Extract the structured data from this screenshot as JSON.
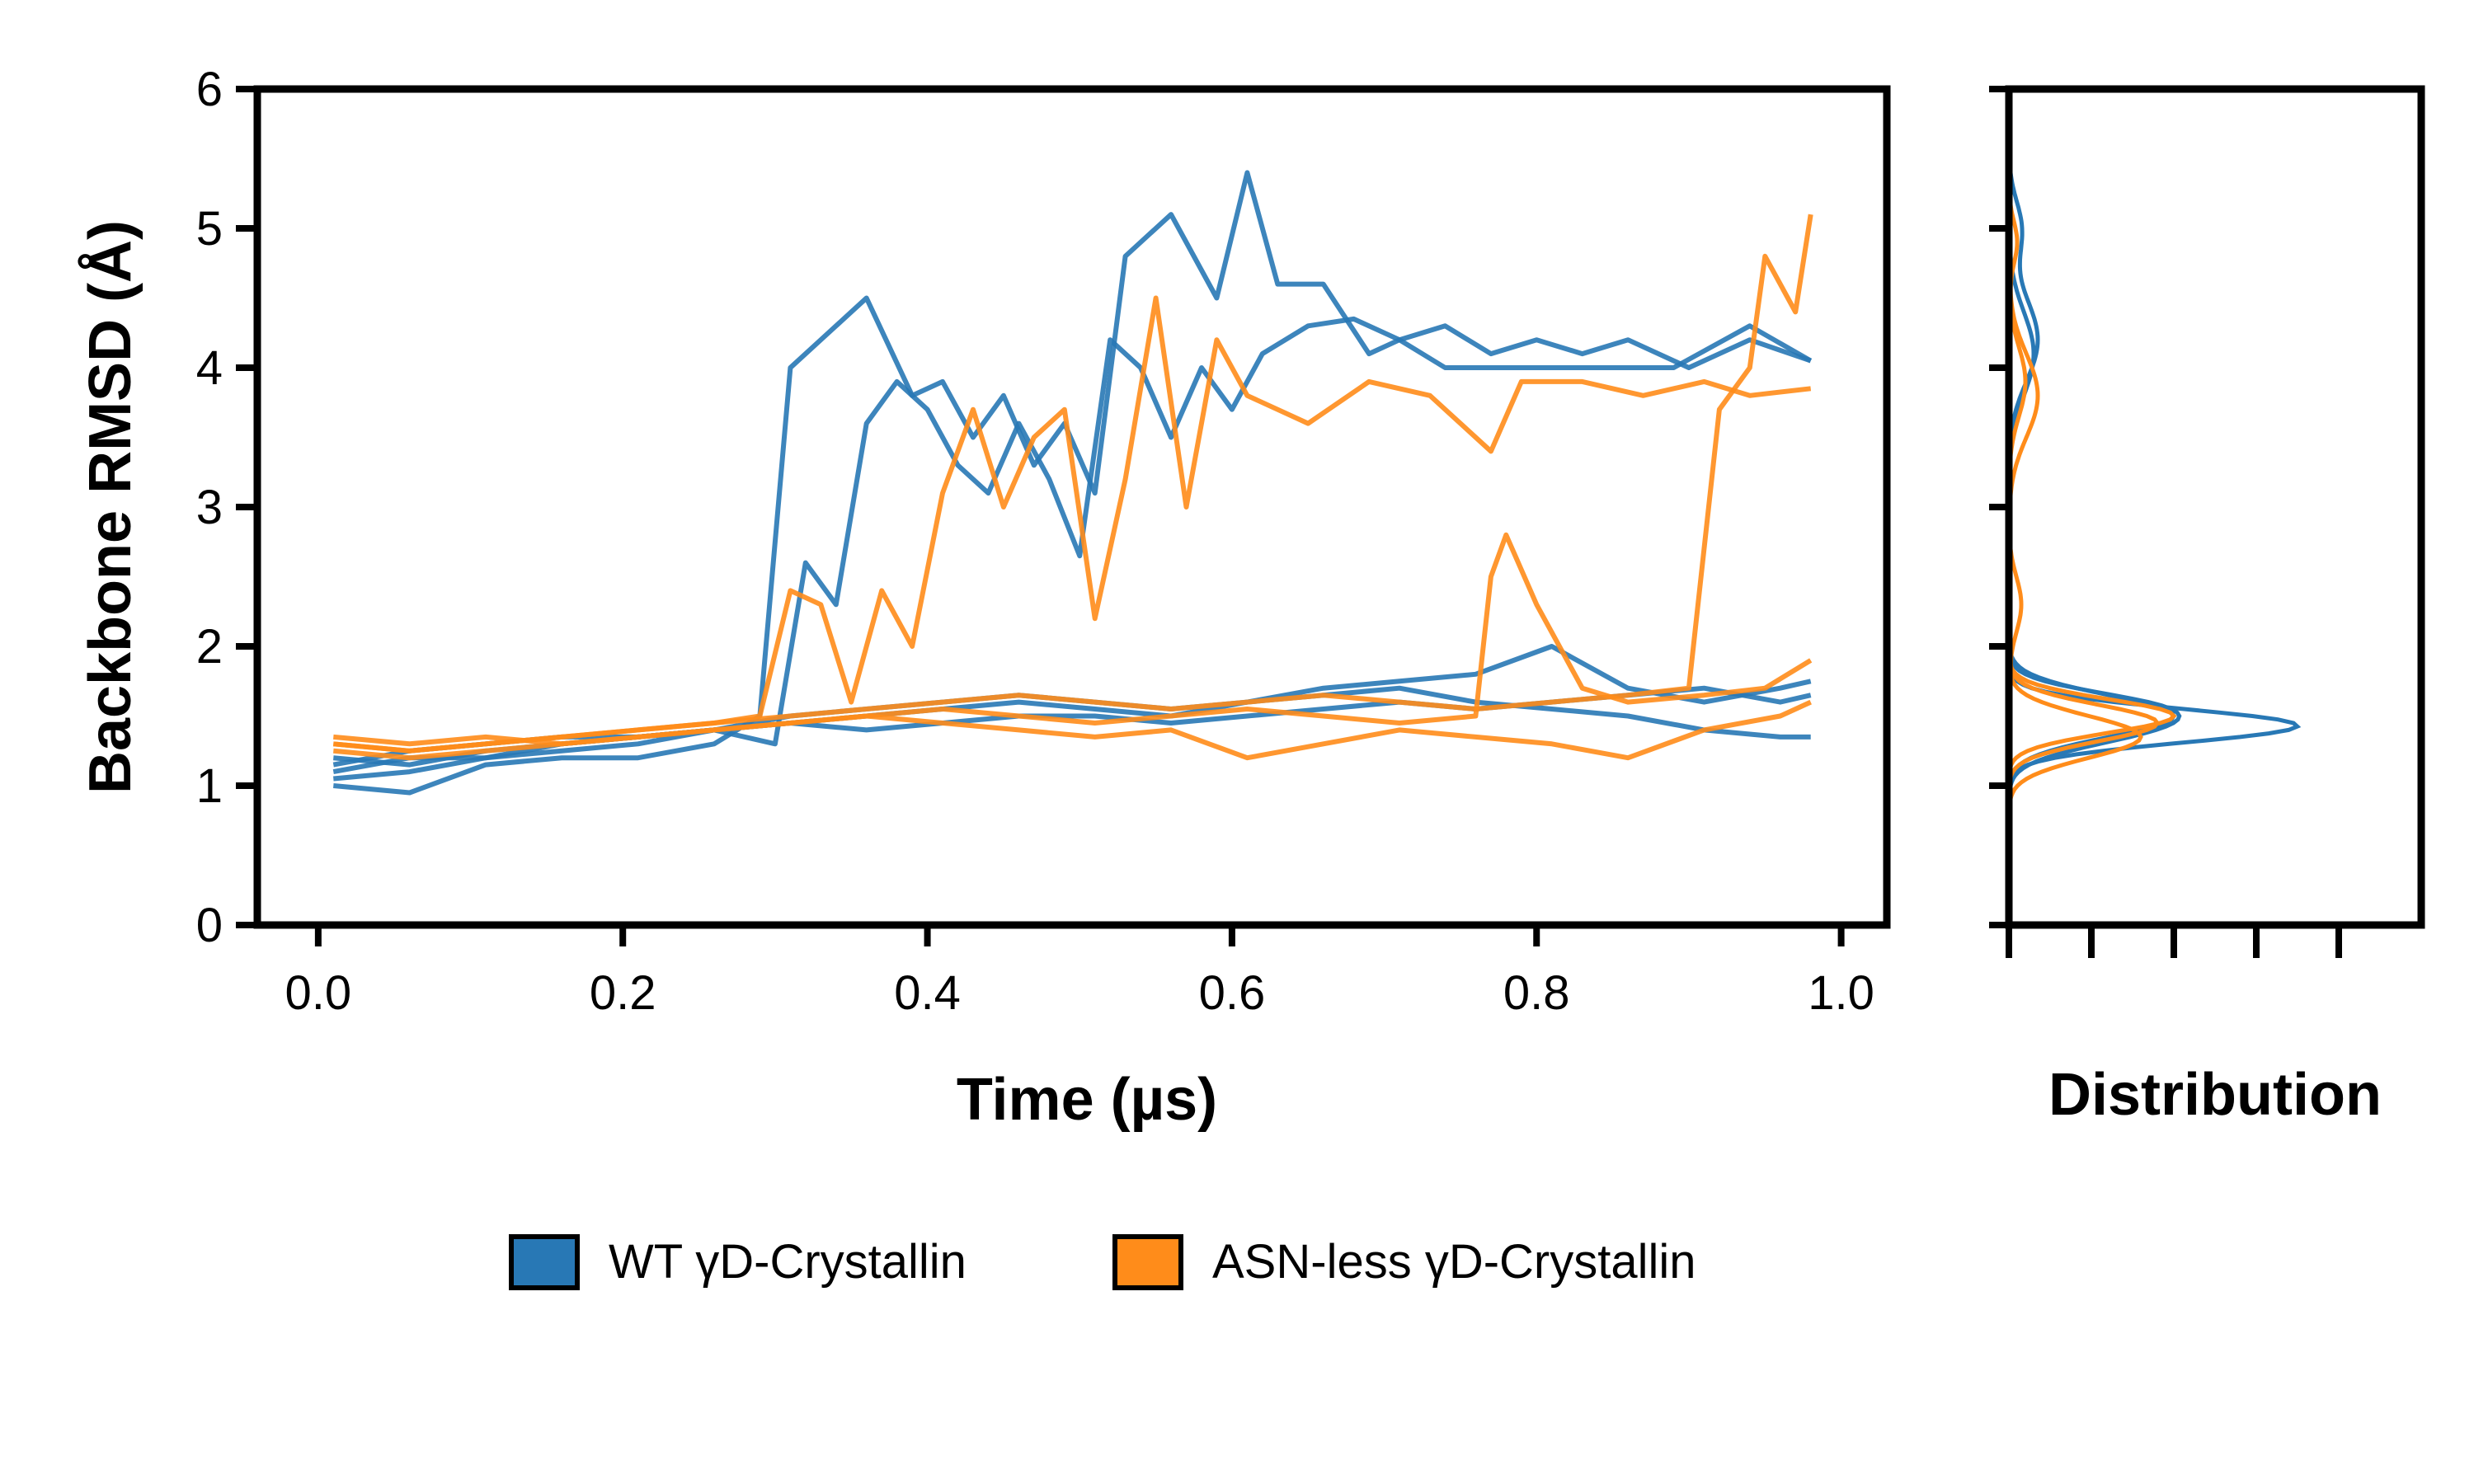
{
  "chart_data": [
    {
      "type": "line",
      "xlabel": "Time (µs)",
      "ylabel": "Backbone RMSD (Å)",
      "xlim": [
        -0.04,
        1.03
      ],
      "ylim": [
        0,
        6
      ],
      "xticks": [
        "0.0",
        "0.2",
        "0.4",
        "0.6",
        "0.8",
        "1.0"
      ],
      "yticks": [
        "0",
        "1",
        "2",
        "3",
        "4",
        "5",
        "6"
      ],
      "grid": false,
      "colors": {
        "WT γD-Crystallin": "#2878b5",
        "ASN-less γD-Crystallin": "#ff8c1a"
      },
      "series": [
        {
          "group": "WT γD-Crystallin",
          "x": [
            0.01,
            0.06,
            0.11,
            0.16,
            0.21,
            0.26,
            0.29,
            0.31,
            0.33,
            0.36,
            0.39,
            0.41,
            0.43,
            0.45,
            0.47,
            0.49,
            0.51,
            0.53,
            0.56,
            0.59,
            0.61,
            0.63,
            0.66,
            0.69,
            0.71,
            0.74,
            0.79,
            0.84,
            0.89,
            0.94,
            0.98
          ],
          "y": [
            1.0,
            0.95,
            1.15,
            1.2,
            1.2,
            1.3,
            1.5,
            4.0,
            4.2,
            4.5,
            3.8,
            3.9,
            3.5,
            3.8,
            3.3,
            3.6,
            3.1,
            4.8,
            5.1,
            4.5,
            5.4,
            4.6,
            4.6,
            4.1,
            4.2,
            4.0,
            4.0,
            4.0,
            4.0,
            4.3,
            4.05
          ]
        },
        {
          "group": "WT γD-Crystallin",
          "x": [
            0.01,
            0.06,
            0.11,
            0.16,
            0.21,
            0.26,
            0.3,
            0.32,
            0.34,
            0.36,
            0.38,
            0.4,
            0.42,
            0.44,
            0.46,
            0.48,
            0.5,
            0.52,
            0.54,
            0.56,
            0.58,
            0.6,
            0.62,
            0.65,
            0.68,
            0.71,
            0.74,
            0.77,
            0.8,
            0.83,
            0.86,
            0.9,
            0.94,
            0.98
          ],
          "y": [
            1.05,
            1.1,
            1.2,
            1.25,
            1.3,
            1.4,
            1.3,
            2.6,
            2.3,
            3.6,
            3.9,
            3.7,
            3.3,
            3.1,
            3.6,
            3.2,
            2.65,
            4.2,
            4.0,
            3.5,
            4.0,
            3.7,
            4.1,
            4.3,
            4.35,
            4.2,
            4.3,
            4.1,
            4.2,
            4.1,
            4.2,
            4.0,
            4.2,
            4.05
          ]
        },
        {
          "group": "WT γD-Crystallin",
          "x": [
            0.01,
            0.06,
            0.11,
            0.16,
            0.21,
            0.26,
            0.31,
            0.36,
            0.41,
            0.46,
            0.51,
            0.56,
            0.61,
            0.66,
            0.71,
            0.76,
            0.81,
            0.86,
            0.91,
            0.96,
            0.98
          ],
          "y": [
            1.1,
            1.2,
            1.2,
            1.3,
            1.35,
            1.4,
            1.45,
            1.5,
            1.55,
            1.6,
            1.55,
            1.5,
            1.6,
            1.65,
            1.7,
            1.6,
            1.55,
            1.5,
            1.4,
            1.35,
            1.35
          ]
        },
        {
          "group": "WT γD-Crystallin",
          "x": [
            0.01,
            0.06,
            0.11,
            0.16,
            0.21,
            0.26,
            0.31,
            0.36,
            0.41,
            0.46,
            0.51,
            0.56,
            0.61,
            0.66,
            0.71,
            0.76,
            0.81,
            0.86,
            0.91,
            0.96,
            0.98
          ],
          "y": [
            1.15,
            1.25,
            1.3,
            1.35,
            1.35,
            1.4,
            1.5,
            1.55,
            1.6,
            1.65,
            1.6,
            1.55,
            1.6,
            1.7,
            1.75,
            1.8,
            2.0,
            1.7,
            1.6,
            1.7,
            1.75
          ]
        },
        {
          "group": "WT γD-Crystallin",
          "x": [
            0.01,
            0.06,
            0.11,
            0.16,
            0.21,
            0.26,
            0.31,
            0.36,
            0.41,
            0.46,
            0.51,
            0.56,
            0.61,
            0.66,
            0.71,
            0.76,
            0.81,
            0.86,
            0.91,
            0.96,
            0.98
          ],
          "y": [
            1.2,
            1.15,
            1.25,
            1.3,
            1.35,
            1.4,
            1.45,
            1.4,
            1.45,
            1.5,
            1.5,
            1.45,
            1.5,
            1.55,
            1.6,
            1.55,
            1.6,
            1.65,
            1.7,
            1.6,
            1.65
          ]
        },
        {
          "group": "ASN-less γD-Crystallin",
          "x": [
            0.01,
            0.06,
            0.11,
            0.16,
            0.21,
            0.26,
            0.29,
            0.31,
            0.33,
            0.35,
            0.37,
            0.39,
            0.41,
            0.43,
            0.45,
            0.47,
            0.49,
            0.51,
            0.53,
            0.55,
            0.57,
            0.59,
            0.61,
            0.65,
            0.69,
            0.73,
            0.77,
            0.79,
            0.83,
            0.87,
            0.91,
            0.94,
            0.98
          ],
          "y": [
            1.3,
            1.25,
            1.3,
            1.35,
            1.4,
            1.45,
            1.5,
            2.4,
            2.3,
            1.6,
            2.4,
            2.0,
            3.1,
            3.7,
            3.0,
            3.5,
            3.7,
            2.2,
            3.2,
            4.5,
            3.0,
            4.2,
            3.8,
            3.6,
            3.9,
            3.8,
            3.4,
            3.9,
            3.9,
            3.8,
            3.9,
            3.8,
            3.85
          ]
        },
        {
          "group": "ASN-less γD-Crystallin",
          "x": [
            0.01,
            0.06,
            0.11,
            0.16,
            0.21,
            0.26,
            0.31,
            0.36,
            0.41,
            0.46,
            0.51,
            0.56,
            0.61,
            0.66,
            0.71,
            0.76,
            0.81,
            0.86,
            0.9,
            0.92,
            0.94,
            0.95,
            0.97,
            0.98
          ],
          "y": [
            1.3,
            1.25,
            1.3,
            1.35,
            1.4,
            1.45,
            1.5,
            1.55,
            1.6,
            1.65,
            1.6,
            1.55,
            1.6,
            1.65,
            1.6,
            1.55,
            1.6,
            1.65,
            1.7,
            3.7,
            4.0,
            4.8,
            4.4,
            5.1
          ]
        },
        {
          "group": "ASN-less γD-Crystallin",
          "x": [
            0.01,
            0.06,
            0.11,
            0.16,
            0.21,
            0.26,
            0.31,
            0.36,
            0.41,
            0.46,
            0.51,
            0.56,
            0.61,
            0.66,
            0.71,
            0.76,
            0.77,
            0.78,
            0.8,
            0.83,
            0.86,
            0.91,
            0.95,
            0.98
          ],
          "y": [
            1.25,
            1.2,
            1.25,
            1.3,
            1.35,
            1.4,
            1.45,
            1.5,
            1.55,
            1.5,
            1.45,
            1.5,
            1.55,
            1.5,
            1.45,
            1.5,
            2.5,
            2.8,
            2.3,
            1.7,
            1.6,
            1.65,
            1.7,
            1.9
          ]
        },
        {
          "group": "ASN-less γD-Crystallin",
          "x": [
            0.01,
            0.06,
            0.11,
            0.16,
            0.21,
            0.26,
            0.31,
            0.36,
            0.41,
            0.46,
            0.51,
            0.56,
            0.61,
            0.66,
            0.71,
            0.76,
            0.81,
            0.86,
            0.91,
            0.96,
            0.98
          ],
          "y": [
            1.35,
            1.3,
            1.35,
            1.3,
            1.35,
            1.4,
            1.45,
            1.5,
            1.45,
            1.4,
            1.35,
            1.4,
            1.2,
            1.3,
            1.4,
            1.35,
            1.3,
            1.2,
            1.4,
            1.5,
            1.6
          ]
        }
      ]
    },
    {
      "type": "area",
      "xlabel": "Distribution",
      "orientation": "vertical-density",
      "ylim": [
        0,
        6
      ],
      "curves": [
        {
          "group": "WT γD-Crystallin",
          "peaks": [
            [
              1.43,
              0.12,
              3.5
            ],
            [
              4.2,
              0.3,
              0.35
            ],
            [
              5.0,
              0.2,
              0.15
            ]
          ]
        },
        {
          "group": "WT γD-Crystallin",
          "peaks": [
            [
              1.5,
              0.15,
              2.0
            ],
            [
              4.1,
              0.3,
              0.3
            ]
          ]
        },
        {
          "group": "WT γD-Crystallin",
          "peaks": [
            [
              1.45,
              0.15,
              1.8
            ],
            [
              1.6,
              0.1,
              0.6
            ]
          ]
        },
        {
          "group": "ASN-less γD-Crystallin",
          "peaks": [
            [
              1.5,
              0.12,
              2.0
            ],
            [
              3.8,
              0.3,
              0.35
            ],
            [
              4.9,
              0.15,
              0.1
            ]
          ]
        },
        {
          "group": "ASN-less γD-Crystallin",
          "peaks": [
            [
              1.45,
              0.13,
              1.8
            ],
            [
              2.3,
              0.2,
              0.15
            ]
          ]
        },
        {
          "group": "ASN-less γD-Crystallin",
          "peaks": [
            [
              1.35,
              0.15,
              1.6
            ],
            [
              3.9,
              0.25,
              0.2
            ]
          ]
        }
      ]
    }
  ],
  "legend": [
    {
      "label": "WT γD-Crystallin",
      "color": "#2878b5"
    },
    {
      "label": "ASN-less γD-Crystallin",
      "color": "#ff8c1a"
    }
  ]
}
